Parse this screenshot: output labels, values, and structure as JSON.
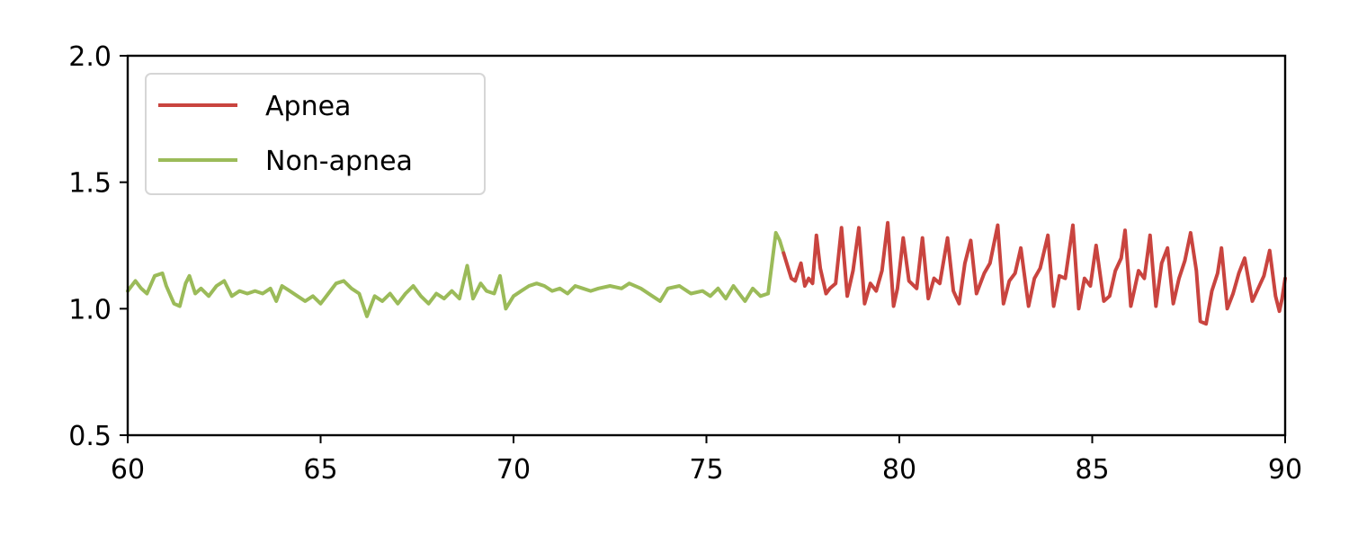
{
  "chart_data": {
    "type": "line",
    "title": "",
    "xlabel": "",
    "ylabel": "",
    "xlim": [
      60,
      90
    ],
    "ylim": [
      0.5,
      2.0
    ],
    "xticks": [
      60,
      65,
      70,
      75,
      80,
      85,
      90
    ],
    "yticks": [
      0.5,
      1.0,
      1.5,
      2.0
    ],
    "xtick_labels": [
      "60",
      "65",
      "70",
      "75",
      "80",
      "85",
      "90"
    ],
    "ytick_labels": [
      "0.5",
      "1.0",
      "1.5",
      "2.0"
    ],
    "grid": false,
    "legend": {
      "position": "upper-left",
      "entries": [
        "Apnea",
        "Non-apnea"
      ]
    },
    "series": [
      {
        "name": "Non-apnea",
        "color": "#9bbb59",
        "points": [
          [
            60.0,
            1.07
          ],
          [
            60.2,
            1.11
          ],
          [
            60.35,
            1.08
          ],
          [
            60.5,
            1.06
          ],
          [
            60.7,
            1.13
          ],
          [
            60.9,
            1.14
          ],
          [
            61.0,
            1.09
          ],
          [
            61.2,
            1.02
          ],
          [
            61.35,
            1.01
          ],
          [
            61.5,
            1.1
          ],
          [
            61.6,
            1.13
          ],
          [
            61.75,
            1.06
          ],
          [
            61.9,
            1.08
          ],
          [
            62.1,
            1.05
          ],
          [
            62.3,
            1.09
          ],
          [
            62.5,
            1.11
          ],
          [
            62.7,
            1.05
          ],
          [
            62.9,
            1.07
          ],
          [
            63.1,
            1.06
          ],
          [
            63.3,
            1.07
          ],
          [
            63.5,
            1.06
          ],
          [
            63.7,
            1.08
          ],
          [
            63.85,
            1.03
          ],
          [
            64.0,
            1.09
          ],
          [
            64.2,
            1.07
          ],
          [
            64.4,
            1.05
          ],
          [
            64.6,
            1.03
          ],
          [
            64.8,
            1.05
          ],
          [
            65.0,
            1.02
          ],
          [
            65.2,
            1.06
          ],
          [
            65.4,
            1.1
          ],
          [
            65.6,
            1.11
          ],
          [
            65.8,
            1.08
          ],
          [
            66.0,
            1.06
          ],
          [
            66.2,
            0.97
          ],
          [
            66.4,
            1.05
          ],
          [
            66.6,
            1.03
          ],
          [
            66.8,
            1.06
          ],
          [
            67.0,
            1.02
          ],
          [
            67.2,
            1.06
          ],
          [
            67.4,
            1.09
          ],
          [
            67.6,
            1.05
          ],
          [
            67.8,
            1.02
          ],
          [
            68.0,
            1.06
          ],
          [
            68.2,
            1.04
          ],
          [
            68.4,
            1.07
          ],
          [
            68.6,
            1.04
          ],
          [
            68.8,
            1.17
          ],
          [
            68.95,
            1.04
          ],
          [
            69.15,
            1.1
          ],
          [
            69.3,
            1.07
          ],
          [
            69.5,
            1.06
          ],
          [
            69.65,
            1.13
          ],
          [
            69.8,
            1.0
          ],
          [
            70.0,
            1.05
          ],
          [
            70.2,
            1.07
          ],
          [
            70.4,
            1.09
          ],
          [
            70.6,
            1.1
          ],
          [
            70.8,
            1.09
          ],
          [
            71.0,
            1.07
          ],
          [
            71.2,
            1.08
          ],
          [
            71.4,
            1.06
          ],
          [
            71.6,
            1.09
          ],
          [
            71.8,
            1.08
          ],
          [
            72.0,
            1.07
          ],
          [
            72.2,
            1.08
          ],
          [
            72.5,
            1.09
          ],
          [
            72.8,
            1.08
          ],
          [
            73.0,
            1.1
          ],
          [
            73.3,
            1.08
          ],
          [
            73.6,
            1.05
          ],
          [
            73.8,
            1.03
          ],
          [
            74.0,
            1.08
          ],
          [
            74.3,
            1.09
          ],
          [
            74.6,
            1.06
          ],
          [
            74.9,
            1.07
          ],
          [
            75.1,
            1.05
          ],
          [
            75.3,
            1.08
          ],
          [
            75.5,
            1.04
          ],
          [
            75.7,
            1.09
          ],
          [
            75.9,
            1.05
          ],
          [
            76.0,
            1.03
          ],
          [
            76.2,
            1.08
          ],
          [
            76.4,
            1.05
          ],
          [
            76.6,
            1.06
          ],
          [
            76.7,
            1.18
          ],
          [
            76.8,
            1.3
          ],
          [
            76.9,
            1.27
          ],
          [
            77.0,
            1.22
          ]
        ]
      },
      {
        "name": "Apnea",
        "color": "#c9443f",
        "points": [
          [
            77.0,
            1.22
          ],
          [
            77.1,
            1.17
          ],
          [
            77.2,
            1.12
          ],
          [
            77.3,
            1.11
          ],
          [
            77.45,
            1.18
          ],
          [
            77.55,
            1.09
          ],
          [
            77.65,
            1.12
          ],
          [
            77.75,
            1.1
          ],
          [
            77.85,
            1.29
          ],
          [
            77.95,
            1.16
          ],
          [
            78.1,
            1.06
          ],
          [
            78.2,
            1.08
          ],
          [
            78.35,
            1.1
          ],
          [
            78.5,
            1.32
          ],
          [
            78.65,
            1.05
          ],
          [
            78.8,
            1.15
          ],
          [
            78.95,
            1.32
          ],
          [
            79.1,
            1.02
          ],
          [
            79.25,
            1.1
          ],
          [
            79.4,
            1.07
          ],
          [
            79.55,
            1.15
          ],
          [
            79.7,
            1.34
          ],
          [
            79.85,
            1.01
          ],
          [
            79.95,
            1.08
          ],
          [
            80.1,
            1.28
          ],
          [
            80.25,
            1.11
          ],
          [
            80.45,
            1.08
          ],
          [
            80.6,
            1.28
          ],
          [
            80.75,
            1.04
          ],
          [
            80.9,
            1.12
          ],
          [
            81.05,
            1.1
          ],
          [
            81.25,
            1.28
          ],
          [
            81.4,
            1.07
          ],
          [
            81.55,
            1.02
          ],
          [
            81.7,
            1.18
          ],
          [
            81.85,
            1.27
          ],
          [
            82.0,
            1.06
          ],
          [
            82.2,
            1.14
          ],
          [
            82.35,
            1.18
          ],
          [
            82.55,
            1.33
          ],
          [
            82.7,
            1.02
          ],
          [
            82.85,
            1.11
          ],
          [
            83.0,
            1.14
          ],
          [
            83.15,
            1.24
          ],
          [
            83.35,
            1.01
          ],
          [
            83.5,
            1.12
          ],
          [
            83.65,
            1.16
          ],
          [
            83.85,
            1.29
          ],
          [
            84.0,
            1.01
          ],
          [
            84.15,
            1.13
          ],
          [
            84.3,
            1.12
          ],
          [
            84.5,
            1.33
          ],
          [
            84.65,
            1.0
          ],
          [
            84.8,
            1.12
          ],
          [
            84.95,
            1.09
          ],
          [
            85.1,
            1.25
          ],
          [
            85.3,
            1.03
          ],
          [
            85.45,
            1.05
          ],
          [
            85.6,
            1.15
          ],
          [
            85.75,
            1.2
          ],
          [
            85.85,
            1.31
          ],
          [
            86.0,
            1.01
          ],
          [
            86.2,
            1.15
          ],
          [
            86.35,
            1.12
          ],
          [
            86.5,
            1.29
          ],
          [
            86.65,
            1.01
          ],
          [
            86.8,
            1.18
          ],
          [
            86.95,
            1.24
          ],
          [
            87.1,
            1.02
          ],
          [
            87.25,
            1.12
          ],
          [
            87.4,
            1.19
          ],
          [
            87.55,
            1.3
          ],
          [
            87.7,
            1.15
          ],
          [
            87.8,
            0.95
          ],
          [
            87.95,
            0.94
          ],
          [
            88.1,
            1.07
          ],
          [
            88.25,
            1.14
          ],
          [
            88.35,
            1.24
          ],
          [
            88.5,
            1.0
          ],
          [
            88.65,
            1.06
          ],
          [
            88.8,
            1.14
          ],
          [
            88.95,
            1.2
          ],
          [
            89.15,
            1.03
          ],
          [
            89.3,
            1.08
          ],
          [
            89.45,
            1.13
          ],
          [
            89.6,
            1.23
          ],
          [
            89.75,
            1.05
          ],
          [
            89.85,
            0.99
          ],
          [
            89.92,
            1.04
          ],
          [
            90.0,
            1.12
          ]
        ]
      }
    ]
  }
}
